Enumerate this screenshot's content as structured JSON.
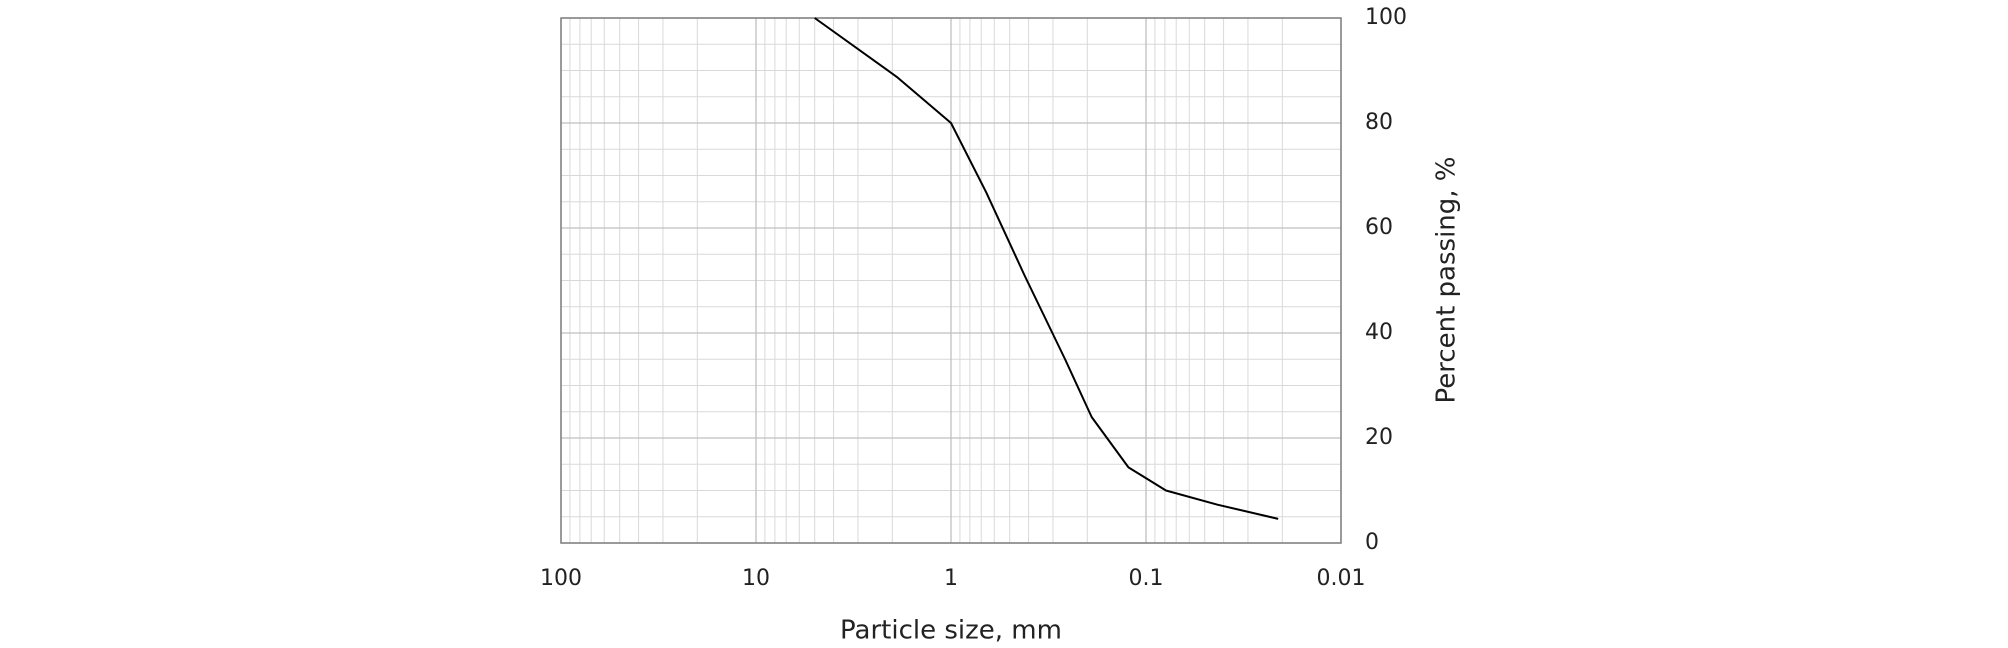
{
  "chart_data": {
    "type": "line",
    "x_label": "Particle size, mm",
    "y_label": "Percent passing, %",
    "xscale": "log",
    "xlim": [
      100,
      0.01
    ],
    "xticks": [
      100,
      10,
      1,
      0.1,
      0.01
    ],
    "ylim": [
      0,
      100
    ],
    "yticks": [
      0,
      20,
      40,
      60,
      80,
      100
    ],
    "grid": true,
    "y_axis_side": "right",
    "series": [
      {
        "color": "#000000",
        "x": [
          5,
          1.9,
          1,
          0.66,
          0.42,
          0.26,
          0.19,
          0.123,
          0.079,
          0.043,
          0.021
        ],
        "values": [
          100,
          88.8,
          80,
          66.8,
          51,
          35,
          24,
          14.4,
          10,
          7.3,
          4.6
        ]
      }
    ]
  }
}
